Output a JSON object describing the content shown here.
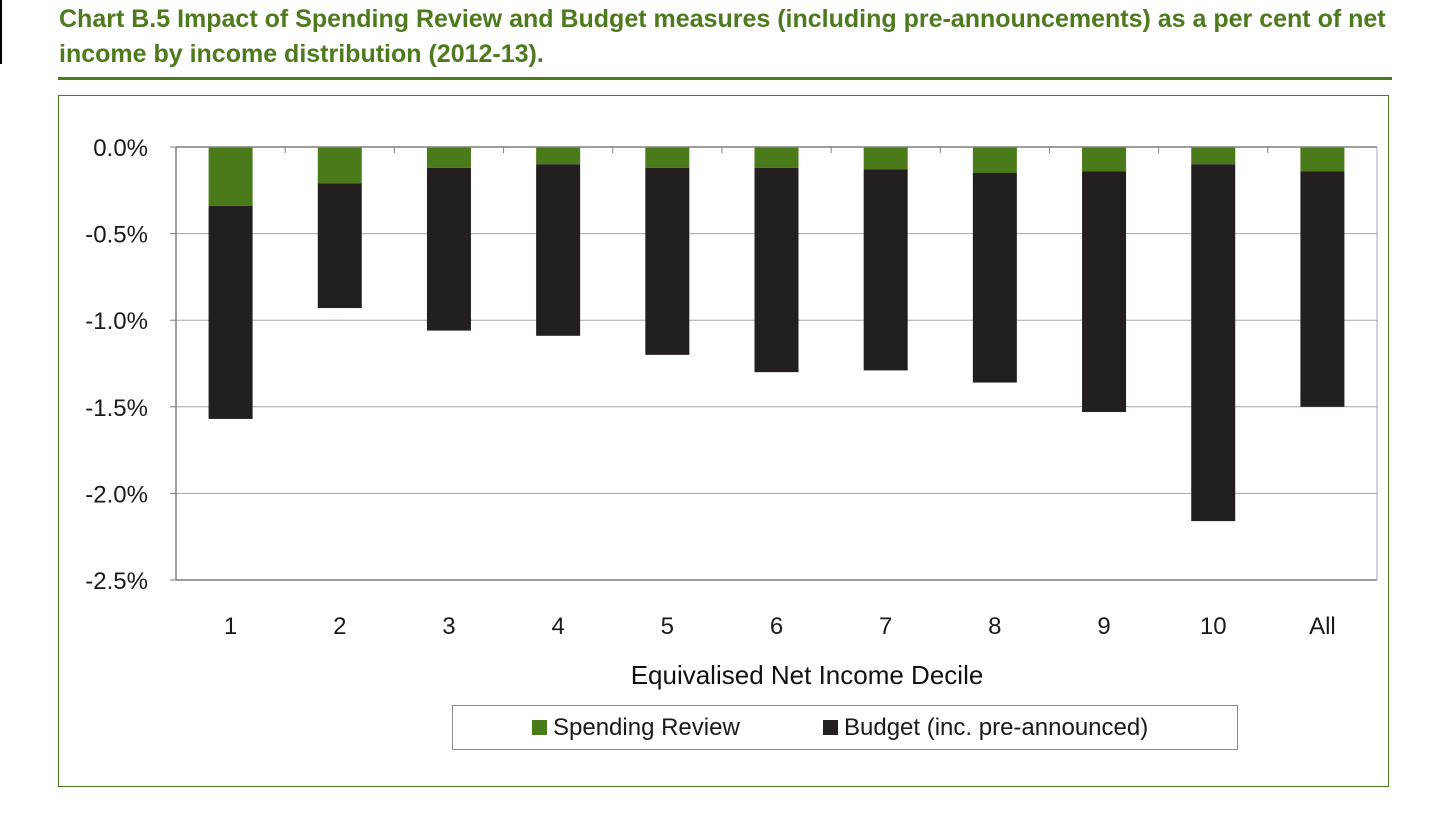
{
  "title": "Chart B.5  Impact of Spending Review and Budget measures (including pre-announcements) as a per cent of net income by income distribution (2012-13).",
  "colors": {
    "title": "#4d7a1c",
    "spending_review": "#4a7a1a",
    "budget": "#231f20",
    "gridline": "#a6a6a6",
    "axis": "#7f7f7f"
  },
  "chart_data": {
    "type": "bar",
    "stacked": true,
    "categories": [
      "1",
      "2",
      "3",
      "4",
      "5",
      "6",
      "7",
      "8",
      "9",
      "10",
      "All"
    ],
    "series": [
      {
        "name": "Spending Review",
        "color": "#4a7a1a",
        "values": [
          -0.34,
          -0.21,
          -0.12,
          -0.1,
          -0.12,
          -0.12,
          -0.13,
          -0.15,
          -0.14,
          -0.1,
          -0.14
        ]
      },
      {
        "name": "Budget (inc. pre-announced)",
        "color": "#231f20",
        "values": [
          -1.23,
          -0.72,
          -0.94,
          -0.99,
          -1.08,
          -1.18,
          -1.16,
          -1.21,
          -1.39,
          -2.06,
          -1.36
        ]
      }
    ],
    "yticks": [
      0.0,
      -0.5,
      -1.0,
      -1.5,
      -2.0,
      -2.5
    ],
    "ytick_labels": [
      "0.0%",
      "-0.5%",
      "-1.0%",
      "-1.5%",
      "-2.0%",
      "-2.5%"
    ],
    "ylim": [
      -2.5,
      0.0
    ],
    "xlabel": "Equivalised Net Income Decile",
    "ylabel": "",
    "grid": true,
    "legend_position": "bottom"
  },
  "legend": {
    "items": [
      {
        "label": "Spending Review",
        "color": "#4a7a1a"
      },
      {
        "label": "Budget (inc. pre-announced)",
        "color": "#231f20"
      }
    ]
  }
}
